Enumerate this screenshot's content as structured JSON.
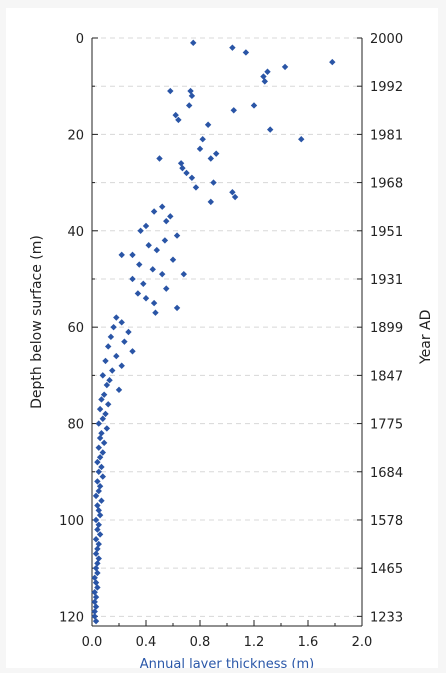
{
  "chart_data": {
    "type": "scatter",
    "title": "",
    "xlabel": "Annual layer thickness (m)",
    "ylabel": "Depth below surface (m)",
    "y2label": "Year AD",
    "xlim": [
      0,
      2.0
    ],
    "ylim": [
      0,
      122
    ],
    "x_ticks": [
      "0.0",
      "0.4",
      "0.8",
      "1.2",
      "1.6",
      "2.0"
    ],
    "y_ticks": [
      "0",
      "20",
      "40",
      "60",
      "80",
      "100",
      "120"
    ],
    "y2_ticks": [
      {
        "depth": 0,
        "label": "2000"
      },
      {
        "depth": 10,
        "label": "1992"
      },
      {
        "depth": 20,
        "label": "1981"
      },
      {
        "depth": 30,
        "label": "1968"
      },
      {
        "depth": 40,
        "label": "1951"
      },
      {
        "depth": 50,
        "label": "1931"
      },
      {
        "depth": 60,
        "label": "1899"
      },
      {
        "depth": 70,
        "label": "1847"
      },
      {
        "depth": 80,
        "label": "1775"
      },
      {
        "depth": 90,
        "label": "1684"
      },
      {
        "depth": 100,
        "label": "1578"
      },
      {
        "depth": 110,
        "label": "1465"
      },
      {
        "depth": 120,
        "label": "1233"
      }
    ],
    "grid": "horizontal dashed",
    "marker_color": "#2a55a6",
    "points": [
      [
        0.75,
        1
      ],
      [
        1.04,
        2
      ],
      [
        1.14,
        3
      ],
      [
        1.78,
        5
      ],
      [
        1.43,
        6
      ],
      [
        1.3,
        7
      ],
      [
        1.27,
        8
      ],
      [
        1.28,
        9
      ],
      [
        0.58,
        11
      ],
      [
        0.73,
        11
      ],
      [
        0.74,
        12
      ],
      [
        0.72,
        14
      ],
      [
        1.2,
        14
      ],
      [
        1.05,
        15
      ],
      [
        0.62,
        16
      ],
      [
        0.64,
        17
      ],
      [
        0.86,
        18
      ],
      [
        1.32,
        19
      ],
      [
        1.55,
        21
      ],
      [
        0.82,
        21
      ],
      [
        0.8,
        23
      ],
      [
        0.92,
        24
      ],
      [
        0.5,
        25
      ],
      [
        0.88,
        25
      ],
      [
        0.66,
        26
      ],
      [
        0.67,
        27
      ],
      [
        0.7,
        28
      ],
      [
        0.74,
        29
      ],
      [
        0.9,
        30
      ],
      [
        0.77,
        31
      ],
      [
        1.04,
        32
      ],
      [
        1.06,
        33
      ],
      [
        0.88,
        34
      ],
      [
        0.52,
        35
      ],
      [
        0.46,
        36
      ],
      [
        0.58,
        37
      ],
      [
        0.55,
        38
      ],
      [
        0.4,
        39
      ],
      [
        0.36,
        40
      ],
      [
        0.63,
        41
      ],
      [
        0.54,
        42
      ],
      [
        0.42,
        43
      ],
      [
        0.48,
        44
      ],
      [
        0.22,
        45
      ],
      [
        0.3,
        45
      ],
      [
        0.6,
        46
      ],
      [
        0.35,
        47
      ],
      [
        0.45,
        48
      ],
      [
        0.52,
        49
      ],
      [
        0.68,
        49
      ],
      [
        0.3,
        50
      ],
      [
        0.38,
        51
      ],
      [
        0.55,
        52
      ],
      [
        0.34,
        53
      ],
      [
        0.4,
        54
      ],
      [
        0.46,
        55
      ],
      [
        0.63,
        56
      ],
      [
        0.47,
        57
      ],
      [
        0.18,
        58
      ],
      [
        0.22,
        59
      ],
      [
        0.16,
        60
      ],
      [
        0.27,
        61
      ],
      [
        0.14,
        62
      ],
      [
        0.24,
        63
      ],
      [
        0.12,
        64
      ],
      [
        0.3,
        65
      ],
      [
        0.18,
        66
      ],
      [
        0.1,
        67
      ],
      [
        0.22,
        68
      ],
      [
        0.15,
        69
      ],
      [
        0.08,
        70
      ],
      [
        0.13,
        71
      ],
      [
        0.11,
        72
      ],
      [
        0.2,
        73
      ],
      [
        0.09,
        74
      ],
      [
        0.07,
        75
      ],
      [
        0.12,
        76
      ],
      [
        0.06,
        77
      ],
      [
        0.1,
        78
      ],
      [
        0.08,
        79
      ],
      [
        0.05,
        80
      ],
      [
        0.11,
        81
      ],
      [
        0.07,
        82
      ],
      [
        0.06,
        83
      ],
      [
        0.09,
        84
      ],
      [
        0.05,
        85
      ],
      [
        0.08,
        86
      ],
      [
        0.06,
        87
      ],
      [
        0.04,
        88
      ],
      [
        0.07,
        89
      ],
      [
        0.05,
        90
      ],
      [
        0.08,
        91
      ],
      [
        0.04,
        92
      ],
      [
        0.06,
        93
      ],
      [
        0.05,
        94
      ],
      [
        0.03,
        95
      ],
      [
        0.07,
        96
      ],
      [
        0.04,
        97
      ],
      [
        0.05,
        98
      ],
      [
        0.06,
        99
      ],
      [
        0.03,
        100
      ],
      [
        0.05,
        101
      ],
      [
        0.04,
        102
      ],
      [
        0.06,
        103
      ],
      [
        0.03,
        104
      ],
      [
        0.05,
        105
      ],
      [
        0.04,
        106
      ],
      [
        0.03,
        107
      ],
      [
        0.05,
        108
      ],
      [
        0.04,
        109
      ],
      [
        0.03,
        110
      ],
      [
        0.04,
        111
      ],
      [
        0.02,
        112
      ],
      [
        0.03,
        113
      ],
      [
        0.04,
        114
      ],
      [
        0.02,
        115
      ],
      [
        0.03,
        116
      ],
      [
        0.02,
        117
      ],
      [
        0.03,
        118
      ],
      [
        0.02,
        119
      ],
      [
        0.02,
        120
      ],
      [
        0.03,
        121
      ]
    ]
  }
}
